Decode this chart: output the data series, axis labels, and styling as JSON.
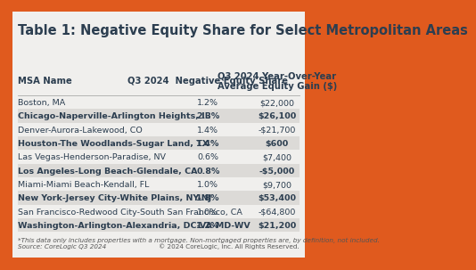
{
  "title": "Table 1: Negative Equity Share for Select Metropolitan Areas",
  "col_headers": [
    "MSA Name",
    "Q3 2024  Negative Equity Share",
    "Q3 2024 Year-Over-Year\nAverage Equity Gain ($)"
  ],
  "rows": [
    [
      "Boston, MA",
      "1.2%",
      "$22,000"
    ],
    [
      "Chicago-Naperville-Arlington Heights, IL",
      "2.3%",
      "$26,100"
    ],
    [
      "Denver-Aurora-Lakewood, CO",
      "1.4%",
      "-$21,700"
    ],
    [
      "Houston-The Woodlands-Sugar Land, TX",
      "1.4%",
      "$600"
    ],
    [
      "Las Vegas-Henderson-Paradise, NV",
      "0.6%",
      "$7,400"
    ],
    [
      "Los Angeles-Long Beach-Glendale, CA",
      "0.8%",
      "-$5,000"
    ],
    [
      "Miami-Miami Beach-Kendall, FL",
      "1.0%",
      "$9,700"
    ],
    [
      "New York-Jersey City-White Plains, NY-NJ",
      "1.8%",
      "$53,400"
    ],
    [
      "San Francisco-Redwood City-South San Francisco, CA",
      "1.0%",
      "-$64,800"
    ],
    [
      "Washington-Arlington-Alexandria, DC-VA-MD-WV",
      "1.2%",
      "$21,200"
    ]
  ],
  "shaded_rows": [
    1,
    3,
    5,
    7,
    9
  ],
  "footer_left": "*This data only includes properties with a mortgage. Non-mortgaged properties are, by definition, not included.\nSource: CoreLogic Q3 2024",
  "footer_right": "© 2024 CoreLogic, Inc. All Rights Reserved.",
  "bg_color": "#f0efed",
  "border_color": "#e05a1e",
  "row_shaded_color": "#dcdad7",
  "row_unshaded_color": "#f0efed",
  "title_color": "#2c3e50",
  "text_color": "#2c3e50",
  "header_text_color": "#2c3e50",
  "title_fontsize": 10.5,
  "header_fontsize": 7.2,
  "row_fontsize": 6.8,
  "footer_fontsize": 5.2
}
